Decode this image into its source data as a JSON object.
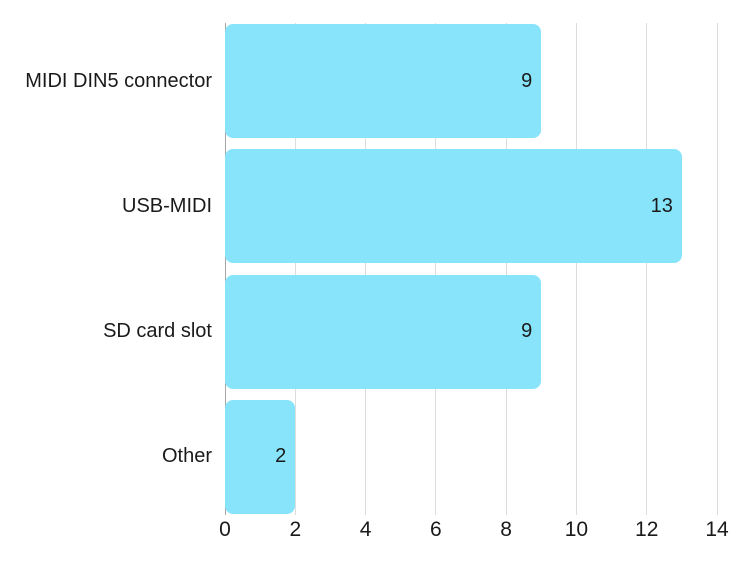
{
  "chart_data": {
    "type": "bar",
    "orientation": "horizontal",
    "title": "",
    "xlabel": "",
    "ylabel": "",
    "categories": [
      "MIDI DIN5 connector",
      "USB-MIDI",
      "SD card slot",
      "Other"
    ],
    "values": [
      9,
      13,
      9,
      2
    ],
    "value_labels": [
      "9",
      "13",
      "9",
      "2"
    ],
    "value_labels_position": "inside-end",
    "xlim": [
      0,
      14
    ],
    "xticks": [
      0,
      2,
      4,
      6,
      8,
      10,
      12,
      14
    ],
    "xtick_labels": [
      "0",
      "2",
      "4",
      "6",
      "8",
      "10",
      "12",
      "14"
    ],
    "grid": "vertical",
    "legend": "none",
    "colors": {
      "bar_fill": "#87E4FA",
      "gridline": "#DCDCDC",
      "zero_line": "#A6A6A6",
      "text": "#1A1A1A",
      "background": "#FFFFFF"
    }
  }
}
